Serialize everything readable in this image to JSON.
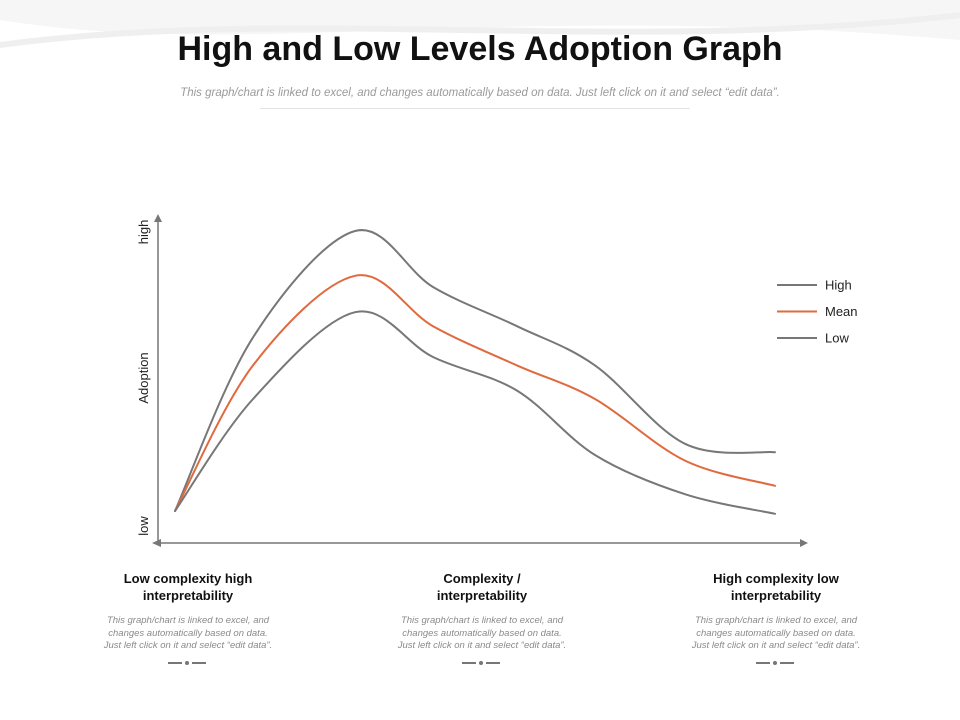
{
  "page": {
    "title": "High and Low Levels Adoption Graph",
    "subtitle": "This graph/chart is linked to excel, and changes automatically based on data. Just left click on it and select “edit data”."
  },
  "columns": [
    {
      "title": "Low complexity high interpretability",
      "description": "This graph/chart is linked to excel, and changes automatically based on data. Just left click on it and select “edit data”."
    },
    {
      "title": "Complexity / interpretability",
      "description": "This graph/chart is linked to excel, and changes automatically based on data. Just left click on it and select “edit data”."
    },
    {
      "title": "High complexity low interpretability",
      "description": "This graph/chart is linked to excel, and changes automatically based on data. Just left click on it and select “edit data”."
    }
  ],
  "colors": {
    "high": "#777777",
    "mean": "#e06a3f",
    "low": "#777777",
    "axis": "#777777"
  },
  "chart_data": {
    "type": "line",
    "title": "High and Low Levels Adoption Graph",
    "ylabel": "Adoption",
    "xlabel": "",
    "ytick_high": "high",
    "ytick_low": "low",
    "ylim": [
      0,
      100
    ],
    "xlim": [
      0,
      100
    ],
    "grid": false,
    "legend_position": "right",
    "x": [
      0,
      13,
      30,
      43,
      57,
      70,
      85,
      100
    ],
    "series": [
      {
        "name": "High",
        "color_key": "high",
        "values": [
          0,
          62,
          100,
          80,
          66,
          52,
          24,
          21
        ]
      },
      {
        "name": "Mean",
        "color_key": "mean",
        "values": [
          0,
          52,
          84,
          66,
          52,
          40,
          18,
          9
        ]
      },
      {
        "name": "Low",
        "color_key": "low",
        "values": [
          0,
          40,
          71,
          55,
          43,
          20,
          6,
          -1
        ]
      }
    ]
  }
}
